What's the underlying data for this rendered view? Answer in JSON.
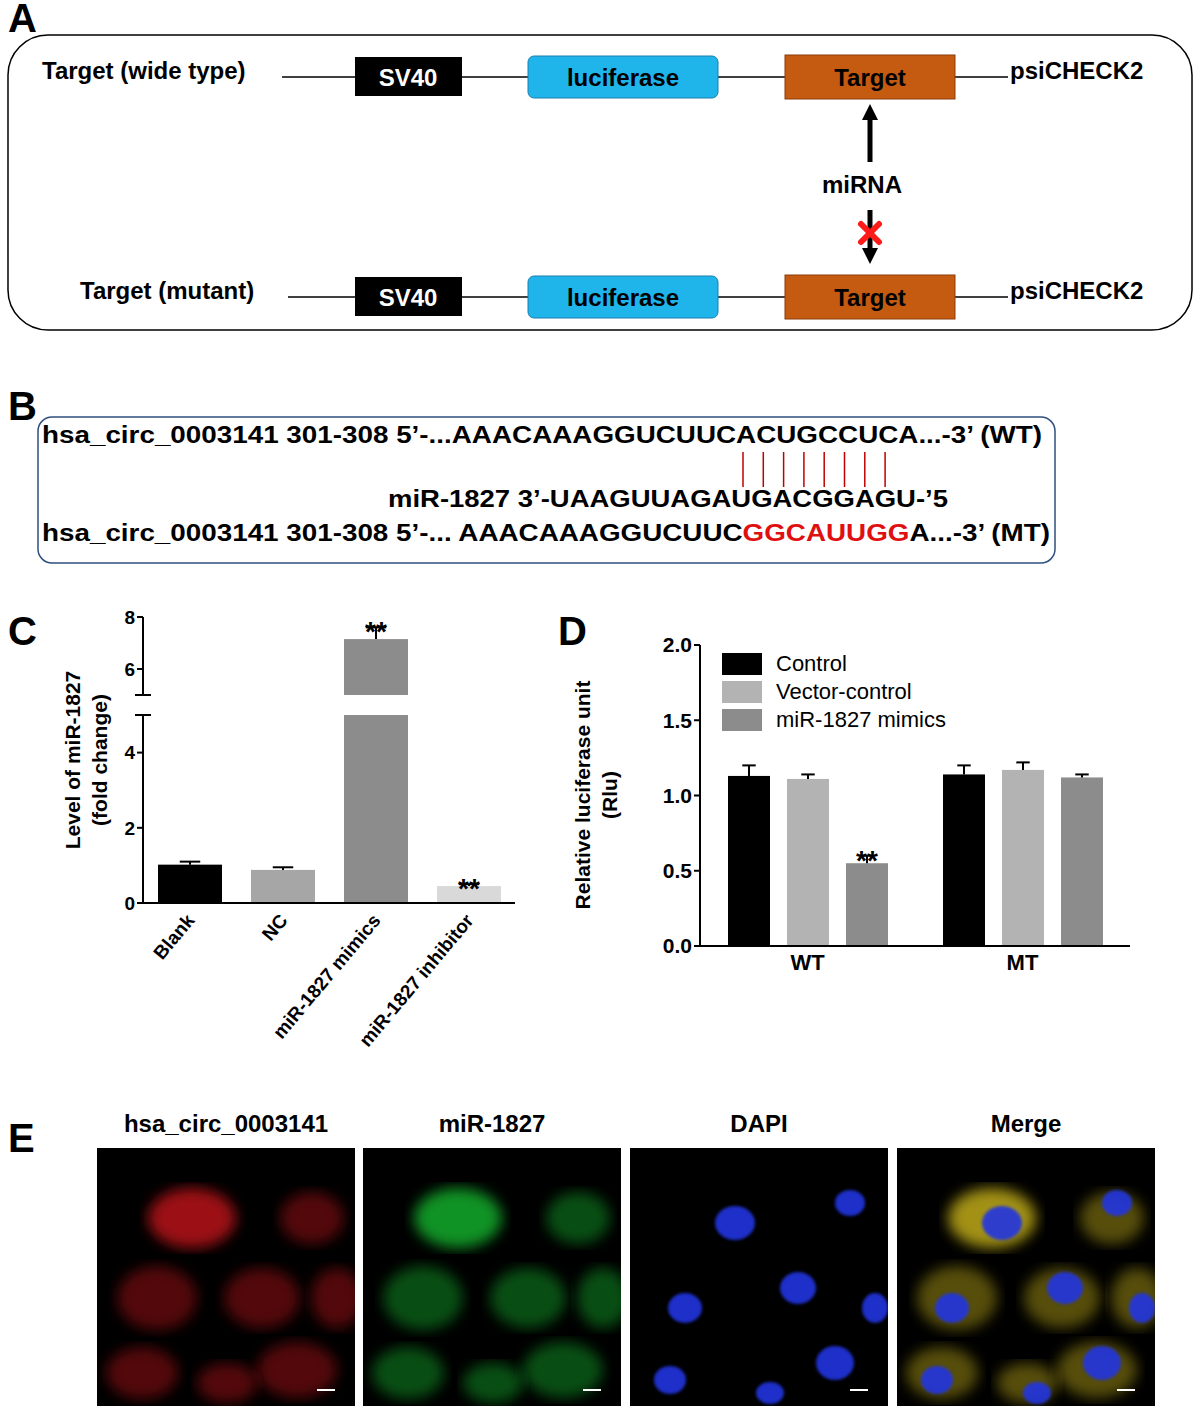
{
  "panel_labels": [
    "A",
    "B",
    "C",
    "D",
    "E"
  ],
  "diagram": {
    "rows": [
      {
        "label": "Target (wide type)",
        "elements": [
          "SV40",
          "luciferase",
          "Target"
        ],
        "vector": "psiCHECK2"
      },
      {
        "label": "Target (mutant)",
        "elements": [
          "SV40",
          "luciferase",
          "Target"
        ],
        "vector": "psiCHECK2"
      }
    ],
    "center_label": "miRNA"
  },
  "sequences": {
    "wt": {
      "name": "hsa_circ_0003141 301-308",
      "sequence": "5’-...AAACAAAGGUCUUCACUGCCUCA...-3’",
      "tag": "(WT)"
    },
    "mirna": "miR-1827 3’-UAAGUUAGAUGACGGAGU-’5",
    "mt": {
      "name": "hsa_circ_0003141 301-308",
      "sequence": "5’-... AAACAAAGGUCUUCGGCAUUGGA...-3’",
      "tag": "(MT)",
      "mutated": "GGCAUUGG"
    }
  },
  "chart_data": [
    {
      "type": "bar",
      "ylabel": [
        "Level of miR-1827",
        "(fold change)"
      ],
      "categories": [
        "Blank",
        "NC",
        "miR-1827 mimics",
        "miR-1827 inhibitor"
      ],
      "values": [
        1.02,
        0.88,
        7.15,
        0.45
      ],
      "errors": [
        0.08,
        0.07,
        0.45,
        0.05
      ],
      "significance": [
        null,
        null,
        "**",
        "**"
      ],
      "colors": [
        "#000000",
        "#a6a6a6",
        "#8c8c8c",
        "#d9d9d9"
      ],
      "ylim": [
        0,
        8
      ],
      "y_break": 5,
      "yticks": [
        0,
        2,
        4,
        6,
        8
      ]
    },
    {
      "type": "bar",
      "ylabel": [
        "Relative luciferase unit",
        "(Rlu)"
      ],
      "categories": [
        "WT",
        "MT"
      ],
      "series": [
        {
          "name": "Control",
          "color": "#000000",
          "values": [
            1.13,
            1.14
          ],
          "errors": [
            0.07,
            0.06
          ],
          "significance": [
            null,
            null
          ]
        },
        {
          "name": "Vector-control",
          "color": "#b3b3b3",
          "values": [
            1.11,
            1.17
          ],
          "errors": [
            0.03,
            0.05
          ],
          "significance": [
            null,
            null
          ]
        },
        {
          "name": "miR-1827 mimics",
          "color": "#8c8c8c",
          "values": [
            0.55,
            1.12
          ],
          "errors": [
            0.05,
            0.02
          ],
          "significance": [
            "**",
            null
          ]
        }
      ],
      "ylim": [
        0,
        2
      ],
      "yticks": [
        {
          "value": 0,
          "label": "0.0"
        },
        0.5,
        {
          "value": 1,
          "label": "1.0"
        },
        1.5,
        {
          "value": 2,
          "label": "2.0"
        }
      ],
      "legend": "upper left"
    }
  ],
  "images": {
    "channels": [
      "hsa_circ_0003141",
      "miR-1827",
      "DAPI",
      "Merge"
    ]
  }
}
